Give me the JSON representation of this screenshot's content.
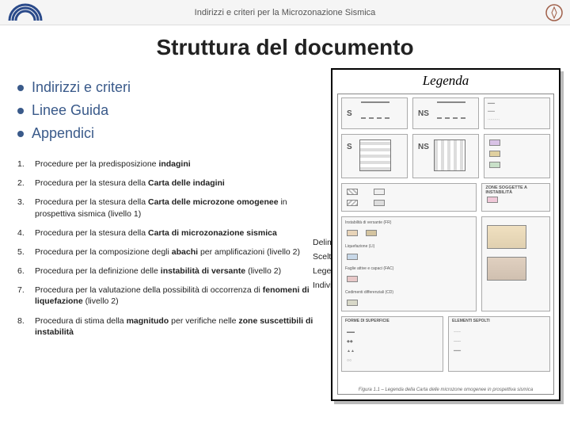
{
  "header": {
    "subtitle": "Indirizzi e criteri per la Microzonazione Sismica"
  },
  "title": "Struttura del documento",
  "bullets": [
    {
      "label": "Indirizzi e criteri"
    },
    {
      "label": "Linee Guida"
    },
    {
      "label": "Appendici"
    }
  ],
  "procedures": [
    {
      "n": "1.",
      "html": "Procedure per la predisposizione <b>indagini</b>"
    },
    {
      "n": "2.",
      "html": "Procedura per la stesura della <b>Carta delle indagini</b>"
    },
    {
      "n": "3.",
      "html": "Procedura per la stesura della <b>Carta delle microzone omogenee</b> in prospettiva sismica (livello 1)"
    },
    {
      "n": "4.",
      "html": "Procedura per la stesura della <b>Carta di microzonazione sismica</b>"
    },
    {
      "n": "5.",
      "html": "Procedura per la composizione degli <b>abachi</b> per amplificazioni (livello 2)"
    },
    {
      "n": "6.",
      "html": "Procedura per la definizione delle <b>instabilità di versante</b> (livello 2)"
    },
    {
      "n": "7.",
      "html": "Procedura per la valutazione della possibilità di occorrenza di <b>fenomeni di liquefazione</b> (livello 2)"
    },
    {
      "n": "8.",
      "html": "Procedura di stima della <b>magnitudo</b> per verifiche nelle <b>zone suscettibili di instabilità</b>"
    }
  ],
  "right_labels": {
    "a": "Delimitaz",
    "b": "Scelta de",
    "c": "Legenda",
    "d": "Individua"
  },
  "legend": {
    "title": "Legenda",
    "zone_letters": [
      "S",
      "NS"
    ],
    "section_labels": {
      "instab": "ZONE SOGGETTE A INSTABILITÀ",
      "vers": "Instabilità di versante (FR)",
      "liq": "Liquefazione (LI)",
      "fag": "Faglie attive e capaci (FAC)",
      "ced": "Cedimenti differenziali (CD)",
      "forme": "FORME DI SUPERFICIE",
      "sepolti": "ELEMENTI SEPOLTI"
    },
    "caption": "Figura 1.1 – Legenda della Carta delle microzone omogenee in prospettiva sismica",
    "colors": {
      "zone_bg": "#f7f7f7",
      "border": "#888888",
      "swatch1": "#d9c3e6",
      "swatch2": "#e0d0a0",
      "swatch3": "#c8e0c8",
      "swatch4": "#f0c8d8",
      "accent": "#3a5a8a"
    }
  }
}
